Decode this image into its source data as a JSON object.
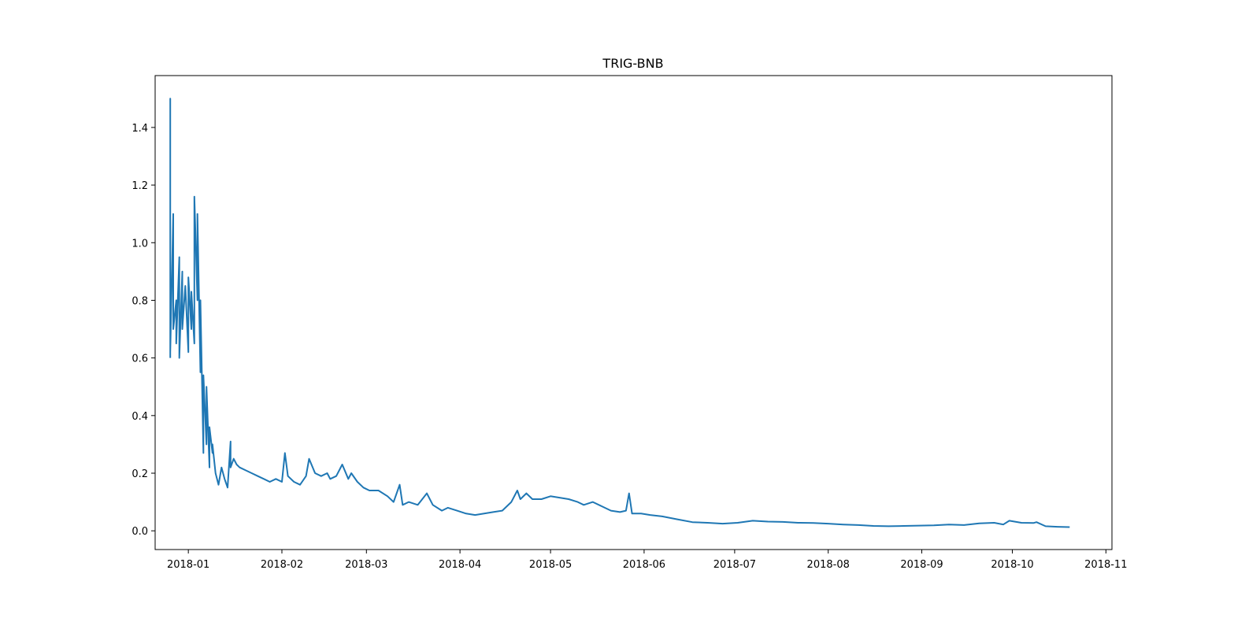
{
  "chart_data": {
    "type": "line",
    "title": "TRIG-BNB",
    "xlabel": "",
    "ylabel": "",
    "grid": false,
    "legend": "none",
    "xlim": [
      "2017-12-21",
      "2018-11-03"
    ],
    "ylim": [
      -0.065,
      1.58
    ],
    "x_ticks": [
      "2018-01",
      "2018-02",
      "2018-03",
      "2018-04",
      "2018-05",
      "2018-06",
      "2018-07",
      "2018-08",
      "2018-09",
      "2018-10",
      "2018-11"
    ],
    "y_ticks": [
      0.0,
      0.2,
      0.4,
      0.6,
      0.8,
      1.0,
      1.2,
      1.4
    ],
    "y_tick_labels": [
      "0.0",
      "0.2",
      "0.4",
      "0.6",
      "0.8",
      "1.0",
      "1.2",
      "1.4"
    ],
    "series": [
      {
        "color": "#1f77b4",
        "x": [
          "2017-12-26",
          "2017-12-26",
          "2017-12-26",
          "2017-12-27",
          "2017-12-27",
          "2017-12-28",
          "2017-12-28",
          "2017-12-29",
          "2017-12-29",
          "2017-12-30",
          "2017-12-30",
          "2017-12-31",
          "2018-01-01",
          "2018-01-01",
          "2018-01-02",
          "2018-01-02",
          "2018-01-03",
          "2018-01-03",
          "2018-01-04",
          "2018-01-04",
          "2018-01-05",
          "2018-01-05",
          "2018-01-06",
          "2018-01-06",
          "2018-01-07",
          "2018-01-07",
          "2018-01-08",
          "2018-01-08",
          "2018-01-09",
          "2018-01-09",
          "2018-01-10",
          "2018-01-11",
          "2018-01-12",
          "2018-01-13",
          "2018-01-14",
          "2018-01-15",
          "2018-01-15",
          "2018-01-16",
          "2018-01-17",
          "2018-01-18",
          "2018-01-20",
          "2018-01-22",
          "2018-01-24",
          "2018-01-26",
          "2018-01-28",
          "2018-01-30",
          "2018-02-01",
          "2018-02-02",
          "2018-02-03",
          "2018-02-05",
          "2018-02-07",
          "2018-02-09",
          "2018-02-10",
          "2018-02-12",
          "2018-02-14",
          "2018-02-16",
          "2018-02-17",
          "2018-02-19",
          "2018-02-21",
          "2018-02-23",
          "2018-02-24",
          "2018-02-26",
          "2018-02-28",
          "2018-03-02",
          "2018-03-05",
          "2018-03-08",
          "2018-03-10",
          "2018-03-12",
          "2018-03-13",
          "2018-03-15",
          "2018-03-18",
          "2018-03-21",
          "2018-03-23",
          "2018-03-26",
          "2018-03-28",
          "2018-03-31",
          "2018-04-03",
          "2018-04-06",
          "2018-04-09",
          "2018-04-12",
          "2018-04-15",
          "2018-04-18",
          "2018-04-20",
          "2018-04-21",
          "2018-04-23",
          "2018-04-25",
          "2018-04-28",
          "2018-05-01",
          "2018-05-04",
          "2018-05-07",
          "2018-05-10",
          "2018-05-12",
          "2018-05-15",
          "2018-05-18",
          "2018-05-21",
          "2018-05-24",
          "2018-05-26",
          "2018-05-27",
          "2018-05-28",
          "2018-05-31",
          "2018-06-03",
          "2018-06-07",
          "2018-06-12",
          "2018-06-17",
          "2018-06-22",
          "2018-06-27",
          "2018-07-02",
          "2018-07-07",
          "2018-07-12",
          "2018-07-17",
          "2018-07-22",
          "2018-07-27",
          "2018-08-01",
          "2018-08-06",
          "2018-08-11",
          "2018-08-16",
          "2018-08-21",
          "2018-08-26",
          "2018-08-31",
          "2018-09-05",
          "2018-09-10",
          "2018-09-15",
          "2018-09-20",
          "2018-09-25",
          "2018-09-28",
          "2018-09-30",
          "2018-10-04",
          "2018-10-08",
          "2018-10-09",
          "2018-10-12",
          "2018-10-16",
          "2018-10-20"
        ],
        "y": [
          0.6,
          1.5,
          0.62,
          1.1,
          0.7,
          0.8,
          0.65,
          0.95,
          0.6,
          0.9,
          0.7,
          0.85,
          0.62,
          0.88,
          0.7,
          0.83,
          0.65,
          1.16,
          0.8,
          1.1,
          0.55,
          0.8,
          0.27,
          0.54,
          0.3,
          0.5,
          0.22,
          0.36,
          0.27,
          0.3,
          0.2,
          0.16,
          0.22,
          0.18,
          0.15,
          0.31,
          0.22,
          0.25,
          0.23,
          0.22,
          0.21,
          0.2,
          0.19,
          0.18,
          0.17,
          0.18,
          0.17,
          0.27,
          0.19,
          0.17,
          0.16,
          0.19,
          0.25,
          0.2,
          0.19,
          0.2,
          0.18,
          0.19,
          0.23,
          0.18,
          0.2,
          0.17,
          0.15,
          0.14,
          0.14,
          0.12,
          0.1,
          0.16,
          0.09,
          0.1,
          0.09,
          0.13,
          0.09,
          0.07,
          0.08,
          0.07,
          0.06,
          0.055,
          0.06,
          0.065,
          0.07,
          0.1,
          0.14,
          0.11,
          0.13,
          0.11,
          0.11,
          0.12,
          0.115,
          0.11,
          0.1,
          0.09,
          0.1,
          0.085,
          0.07,
          0.065,
          0.07,
          0.13,
          0.06,
          0.06,
          0.055,
          0.05,
          0.04,
          0.03,
          0.028,
          0.025,
          0.028,
          0.035,
          0.032,
          0.031,
          0.028,
          0.027,
          0.025,
          0.022,
          0.02,
          0.017,
          0.016,
          0.017,
          0.018,
          0.019,
          0.022,
          0.02,
          0.026,
          0.028,
          0.022,
          0.035,
          0.028,
          0.027,
          0.03,
          0.016,
          0.014,
          0.013
        ]
      }
    ]
  }
}
